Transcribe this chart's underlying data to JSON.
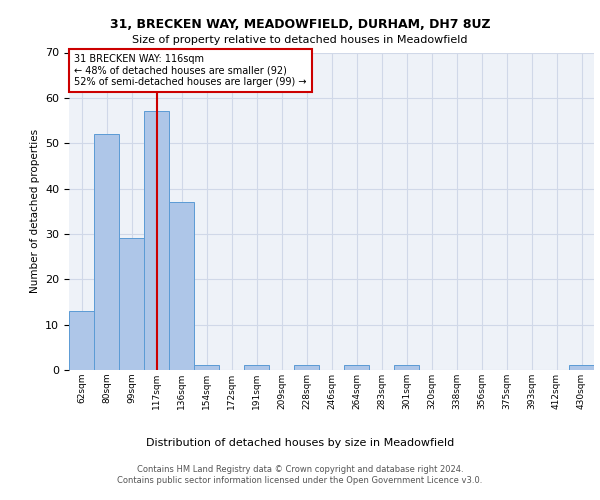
{
  "title_line1": "31, BRECKEN WAY, MEADOWFIELD, DURHAM, DH7 8UZ",
  "title_line2": "Size of property relative to detached houses in Meadowfield",
  "xlabel": "Distribution of detached houses by size in Meadowfield",
  "ylabel": "Number of detached properties",
  "categories": [
    "62sqm",
    "80sqm",
    "99sqm",
    "117sqm",
    "136sqm",
    "154sqm",
    "172sqm",
    "191sqm",
    "209sqm",
    "228sqm",
    "246sqm",
    "264sqm",
    "283sqm",
    "301sqm",
    "320sqm",
    "338sqm",
    "356sqm",
    "375sqm",
    "393sqm",
    "412sqm",
    "430sqm"
  ],
  "values": [
    13,
    52,
    29,
    57,
    37,
    1,
    0,
    1,
    0,
    1,
    0,
    1,
    0,
    1,
    0,
    0,
    0,
    0,
    0,
    0,
    1
  ],
  "bar_color": "#aec6e8",
  "bar_edge_color": "#5b9bd5",
  "grid_color": "#d0d8e8",
  "background_color": "#eef2f8",
  "red_line_index": 3,
  "annotation_text": "31 BRECKEN WAY: 116sqm\n← 48% of detached houses are smaller (92)\n52% of semi-detached houses are larger (99) →",
  "annotation_box_color": "#cc0000",
  "ylim": [
    0,
    70
  ],
  "yticks": [
    0,
    10,
    20,
    30,
    40,
    50,
    60,
    70
  ],
  "footer_line1": "Contains HM Land Registry data © Crown copyright and database right 2024.",
  "footer_line2": "Contains public sector information licensed under the Open Government Licence v3.0."
}
